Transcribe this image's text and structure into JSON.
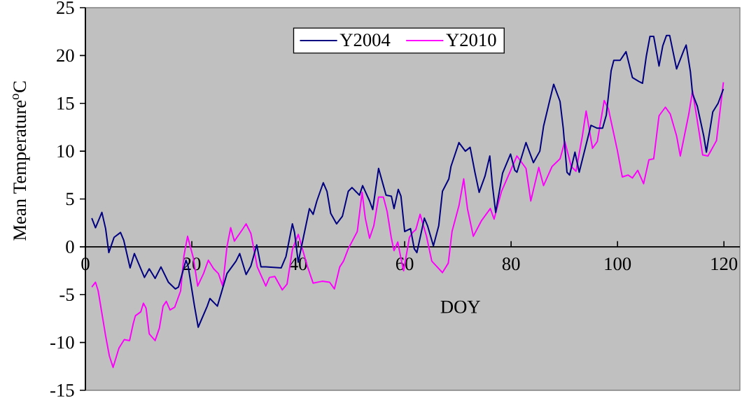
{
  "chart_data": {
    "type": "line",
    "xlabel": "DOY",
    "ylabel": "Mean Temperature$^{o}$C",
    "xlim": [
      0,
      123
    ],
    "ylim": [
      -15,
      25
    ],
    "xticks": [
      0,
      20,
      40,
      60,
      80,
      100,
      120
    ],
    "yticks": [
      -15,
      -10,
      -5,
      0,
      5,
      10,
      15,
      20,
      25
    ],
    "legend": "top",
    "series": [
      {
        "name": "Y2004",
        "color": "#000080",
        "x": [
          1.2,
          1.9,
          3.1,
          3.8,
          4.4,
          5.4,
          6.6,
          7.2,
          8.4,
          9.2,
          11.1,
          12.0,
          13.1,
          14.2,
          15.6,
          16.9,
          17.5,
          18.9,
          19.3,
          20.5,
          21.2,
          22.9,
          23.4,
          24.8,
          25.5,
          26.6,
          28.3,
          29.0,
          30.2,
          31.1,
          32.2,
          33.0,
          33.9,
          36.8,
          37.7,
          38.9,
          39.3,
          40.0,
          41.2,
          42.1,
          42.8,
          43.5,
          44.7,
          45.4,
          46.1,
          47.2,
          48.3,
          49.4,
          50.1,
          51.5,
          52.1,
          53.4,
          54.0,
          55.1,
          56.0,
          56.5,
          57.5,
          58.0,
          58.8,
          59.3,
          60.0,
          61.1,
          61.8,
          62.3,
          63.7,
          64.3,
          65.4,
          66.4,
          67.1,
          68.3,
          68.7,
          70.2,
          71.4,
          72.3,
          73.2,
          74.0,
          75.1,
          76.0,
          76.5,
          77.1,
          78.4,
          79.9,
          80.7,
          81.1,
          82.8,
          84.2,
          85.4,
          86.1,
          87.3,
          88.0,
          89.2,
          89.8,
          90.5,
          91.0,
          92.0,
          92.8,
          95.0,
          96.2,
          97.2,
          97.9,
          98.8,
          99.3,
          100.5,
          101.6,
          102.8,
          104.0,
          104.7,
          105.4,
          106.1,
          106.8,
          107.8,
          108.5,
          109.2,
          109.8,
          111.1,
          112.5,
          112.9,
          113.7,
          114.1,
          115.0,
          116.2,
          116.7,
          117.9,
          118.9,
          119.9
        ],
        "values": [
          3.0,
          2.0,
          3.6,
          1.9,
          -0.6,
          1.0,
          1.5,
          0.7,
          -2.2,
          -0.7,
          -3.2,
          -2.3,
          -3.3,
          -2.1,
          -3.7,
          -4.4,
          -4.2,
          -1.4,
          -2.0,
          -6.2,
          -8.4,
          -6.2,
          -5.4,
          -6.2,
          -4.9,
          -2.8,
          -1.5,
          -0.7,
          -2.9,
          -2.0,
          0.2,
          -2.1,
          -2.1,
          -2.2,
          -1.0,
          2.4,
          1.5,
          -1.6,
          1.6,
          4.0,
          3.4,
          4.8,
          6.7,
          5.8,
          3.5,
          2.4,
          3.2,
          5.8,
          6.2,
          5.4,
          6.4,
          4.8,
          3.9,
          8.2,
          6.4,
          5.4,
          5.3,
          4.0,
          6.0,
          5.3,
          1.6,
          1.9,
          -0.2,
          -0.6,
          3.0,
          2.2,
          0.1,
          2.2,
          5.8,
          7.1,
          8.4,
          10.9,
          10.0,
          10.4,
          7.8,
          5.7,
          7.4,
          9.5,
          6.4,
          3.6,
          7.7,
          9.7,
          8.0,
          7.8,
          10.9,
          8.8,
          10.0,
          12.6,
          15.4,
          17.0,
          15.2,
          12.4,
          7.8,
          7.5,
          9.9,
          7.8,
          12.7,
          12.4,
          12.4,
          13.8,
          18.4,
          19.5,
          19.5,
          20.4,
          17.7,
          17.3,
          17.1,
          19.9,
          22.0,
          22.0,
          18.9,
          21.0,
          22.1,
          22.1,
          18.6,
          20.6,
          21.1,
          18.3,
          16.0,
          14.7,
          11.6,
          9.9,
          14.1,
          15.0,
          16.5
        ]
      },
      {
        "name": "Y2010",
        "color": "#ff00ff",
        "x": [
          1.2,
          1.9,
          2.4,
          3.8,
          4.5,
          5.2,
          6.3,
          7.3,
          8.3,
          9.0,
          9.4,
          10.4,
          10.9,
          11.4,
          12.0,
          13.1,
          13.9,
          14.6,
          15.2,
          15.9,
          16.8,
          17.9,
          18.5,
          19.2,
          20.3,
          21.1,
          22.2,
          23.1,
          24.1,
          25.0,
          25.8,
          26.6,
          27.3,
          28.0,
          29.5,
          30.2,
          31.1,
          32.3,
          33.9,
          34.6,
          35.6,
          37.0,
          37.9,
          38.9,
          40.0,
          41.7,
          42.8,
          44.5,
          45.9,
          46.8,
          47.8,
          48.5,
          49.4,
          51.1,
          52.0,
          52.6,
          53.4,
          54.2,
          55.1,
          56.0,
          56.7,
          57.5,
          58.0,
          58.7,
          59.3,
          59.8,
          60.9,
          61.5,
          62.1,
          62.9,
          64.1,
          65.1,
          67.1,
          68.2,
          68.9,
          70.2,
          71.1,
          71.8,
          72.9,
          74.4,
          76.1,
          76.8,
          78.2,
          81.1,
          82.8,
          83.7,
          85.2,
          86.1,
          87.7,
          89.2,
          90.1,
          91.3,
          92.2,
          93.4,
          94.1,
          95.3,
          96.2,
          97.5,
          98.3,
          100.0,
          100.9,
          102.0,
          102.8,
          103.8,
          104.9,
          105.9,
          106.8,
          107.8,
          109.0,
          109.9,
          111.1,
          111.8,
          113.4,
          114.1,
          115.3,
          116.0,
          117.0,
          118.6,
          119.9
        ],
        "values": [
          -4.2,
          -3.7,
          -4.6,
          -9.3,
          -11.4,
          -12.6,
          -10.6,
          -9.7,
          -9.8,
          -8.0,
          -7.2,
          -6.8,
          -5.9,
          -6.4,
          -9.1,
          -9.8,
          -8.5,
          -6.2,
          -5.7,
          -6.6,
          -6.3,
          -4.6,
          -1.0,
          1.1,
          -1.2,
          -4.1,
          -2.8,
          -1.4,
          -2.3,
          -2.8,
          -4.1,
          0.0,
          2.0,
          0.6,
          1.8,
          2.4,
          1.4,
          -2.1,
          -4.1,
          -3.2,
          -3.1,
          -4.5,
          -3.9,
          -0.3,
          1.3,
          -2.0,
          -3.8,
          -3.6,
          -3.7,
          -4.4,
          -2.1,
          -1.5,
          -0.2,
          1.6,
          5.7,
          3.0,
          0.9,
          2.2,
          5.2,
          5.2,
          3.7,
          0.9,
          -0.4,
          0.5,
          -1.2,
          -2.5,
          1.0,
          1.5,
          1.8,
          3.4,
          1.1,
          -1.5,
          -2.7,
          -1.7,
          1.6,
          4.3,
          7.1,
          4.0,
          1.1,
          2.7,
          4.0,
          2.9,
          5.8,
          9.5,
          8.2,
          4.8,
          8.3,
          6.4,
          8.4,
          9.2,
          11.0,
          8.4,
          7.9,
          11.6,
          14.2,
          10.3,
          11.0,
          15.3,
          14.4,
          10.0,
          7.3,
          7.5,
          7.2,
          8.0,
          6.6,
          9.1,
          9.2,
          13.7,
          14.6,
          13.9,
          11.6,
          9.5,
          13.9,
          16.3,
          12.1,
          9.6,
          9.5,
          11.1,
          17.2
        ]
      }
    ]
  }
}
